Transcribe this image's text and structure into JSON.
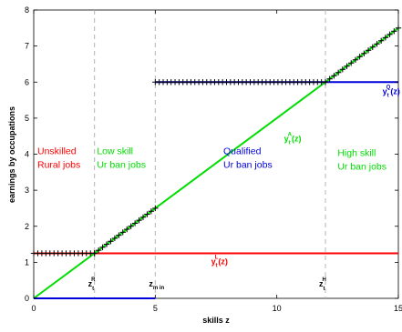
{
  "chart_data": {
    "type": "line",
    "xlabel": "skills z",
    "ylabel": "earnings by occupations",
    "xlim": [
      0,
      15
    ],
    "ylim": [
      0,
      8
    ],
    "x_ticks": [
      0,
      5,
      10,
      15
    ],
    "y_ticks": [
      0,
      1,
      2,
      3,
      4,
      5,
      6,
      7,
      8
    ],
    "x_tick_labels": [
      "0",
      "5",
      "10",
      "15"
    ],
    "y_tick_labels": [
      "0",
      "1",
      "2",
      "3",
      "4",
      "5",
      "6",
      "7",
      "8"
    ],
    "grid": false,
    "colors": {
      "rural": "#ff0000",
      "lowskill": "#00dd00",
      "qualified": "#0000dd",
      "marker": "#000000",
      "vline": "#b4b4b4"
    },
    "series": [
      {
        "key": "yL",
        "color": "#ff0000",
        "points": [
          [
            0,
            1.25
          ],
          [
            15,
            1.25
          ]
        ]
      },
      {
        "key": "yA",
        "color": "#00dd00",
        "points": [
          [
            0,
            0
          ],
          [
            15,
            7.5
          ]
        ]
      },
      {
        "key": "yQ_low",
        "color": "#0000dd",
        "points": [
          [
            0,
            0
          ],
          [
            5,
            0
          ]
        ]
      },
      {
        "key": "yQ_high",
        "color": "#0000dd",
        "points": [
          [
            5,
            6
          ],
          [
            15,
            6
          ]
        ]
      }
    ],
    "marker_segments": [
      {
        "x_from": 0,
        "x_to": 2.5,
        "y": 1.25,
        "slope": 0,
        "count": 16
      },
      {
        "x_from": 2.5,
        "x_to": 5,
        "y": 1.25,
        "slope": 0.5,
        "count": 16
      },
      {
        "x_from": 5,
        "x_to": 12,
        "y": 6,
        "slope": 0,
        "count": 44
      },
      {
        "x_from": 12,
        "x_to": 15,
        "y": 6,
        "slope": 0.5,
        "count": 18
      }
    ],
    "vlines": [
      2.5,
      5,
      12
    ],
    "threshold_labels": [
      {
        "x": 2.5,
        "text": "z",
        "sup": "R",
        "sub": "t"
      },
      {
        "x": 5,
        "text": "z",
        "sub": "m in"
      },
      {
        "x": 12,
        "text": "z",
        "sup": "H",
        "sub": "t"
      }
    ],
    "curve_labels": [
      {
        "key": "yQ",
        "x": 14.35,
        "y": 5.66,
        "color": "#0000dd",
        "text": "y",
        "sub": "t",
        "sup": "Q",
        "tail": "(z)"
      },
      {
        "key": "yA",
        "x": 10.3,
        "y": 4.35,
        "color": "#00dd00",
        "text": "y",
        "sub": "t",
        "sup": "A",
        "tail": "(z)"
      },
      {
        "key": "yL",
        "x": 7.3,
        "y": 0.95,
        "color": "#ff0000",
        "text": "y",
        "sub": "t",
        "sup": "L",
        "tail": "(z)"
      }
    ],
    "regions": [
      {
        "key": "rural",
        "x": 0.15,
        "y": 4.0,
        "color": "#ff0000",
        "lines": [
          "Unskilled",
          "Rural jobs"
        ]
      },
      {
        "key": "lowskill",
        "x": 2.6,
        "y": 4.0,
        "color": "#00dd00",
        "lines": [
          "Low skill",
          "Ur ban jobs"
        ]
      },
      {
        "key": "qualified",
        "x": 7.8,
        "y": 4.0,
        "color": "#0000dd",
        "lines": [
          "Qualified",
          "Ur ban jobs"
        ]
      },
      {
        "key": "highskill",
        "x": 12.5,
        "y": 3.95,
        "color": "#00dd00",
        "lines": [
          "High skill",
          "Ur ban jobs"
        ]
      }
    ]
  }
}
